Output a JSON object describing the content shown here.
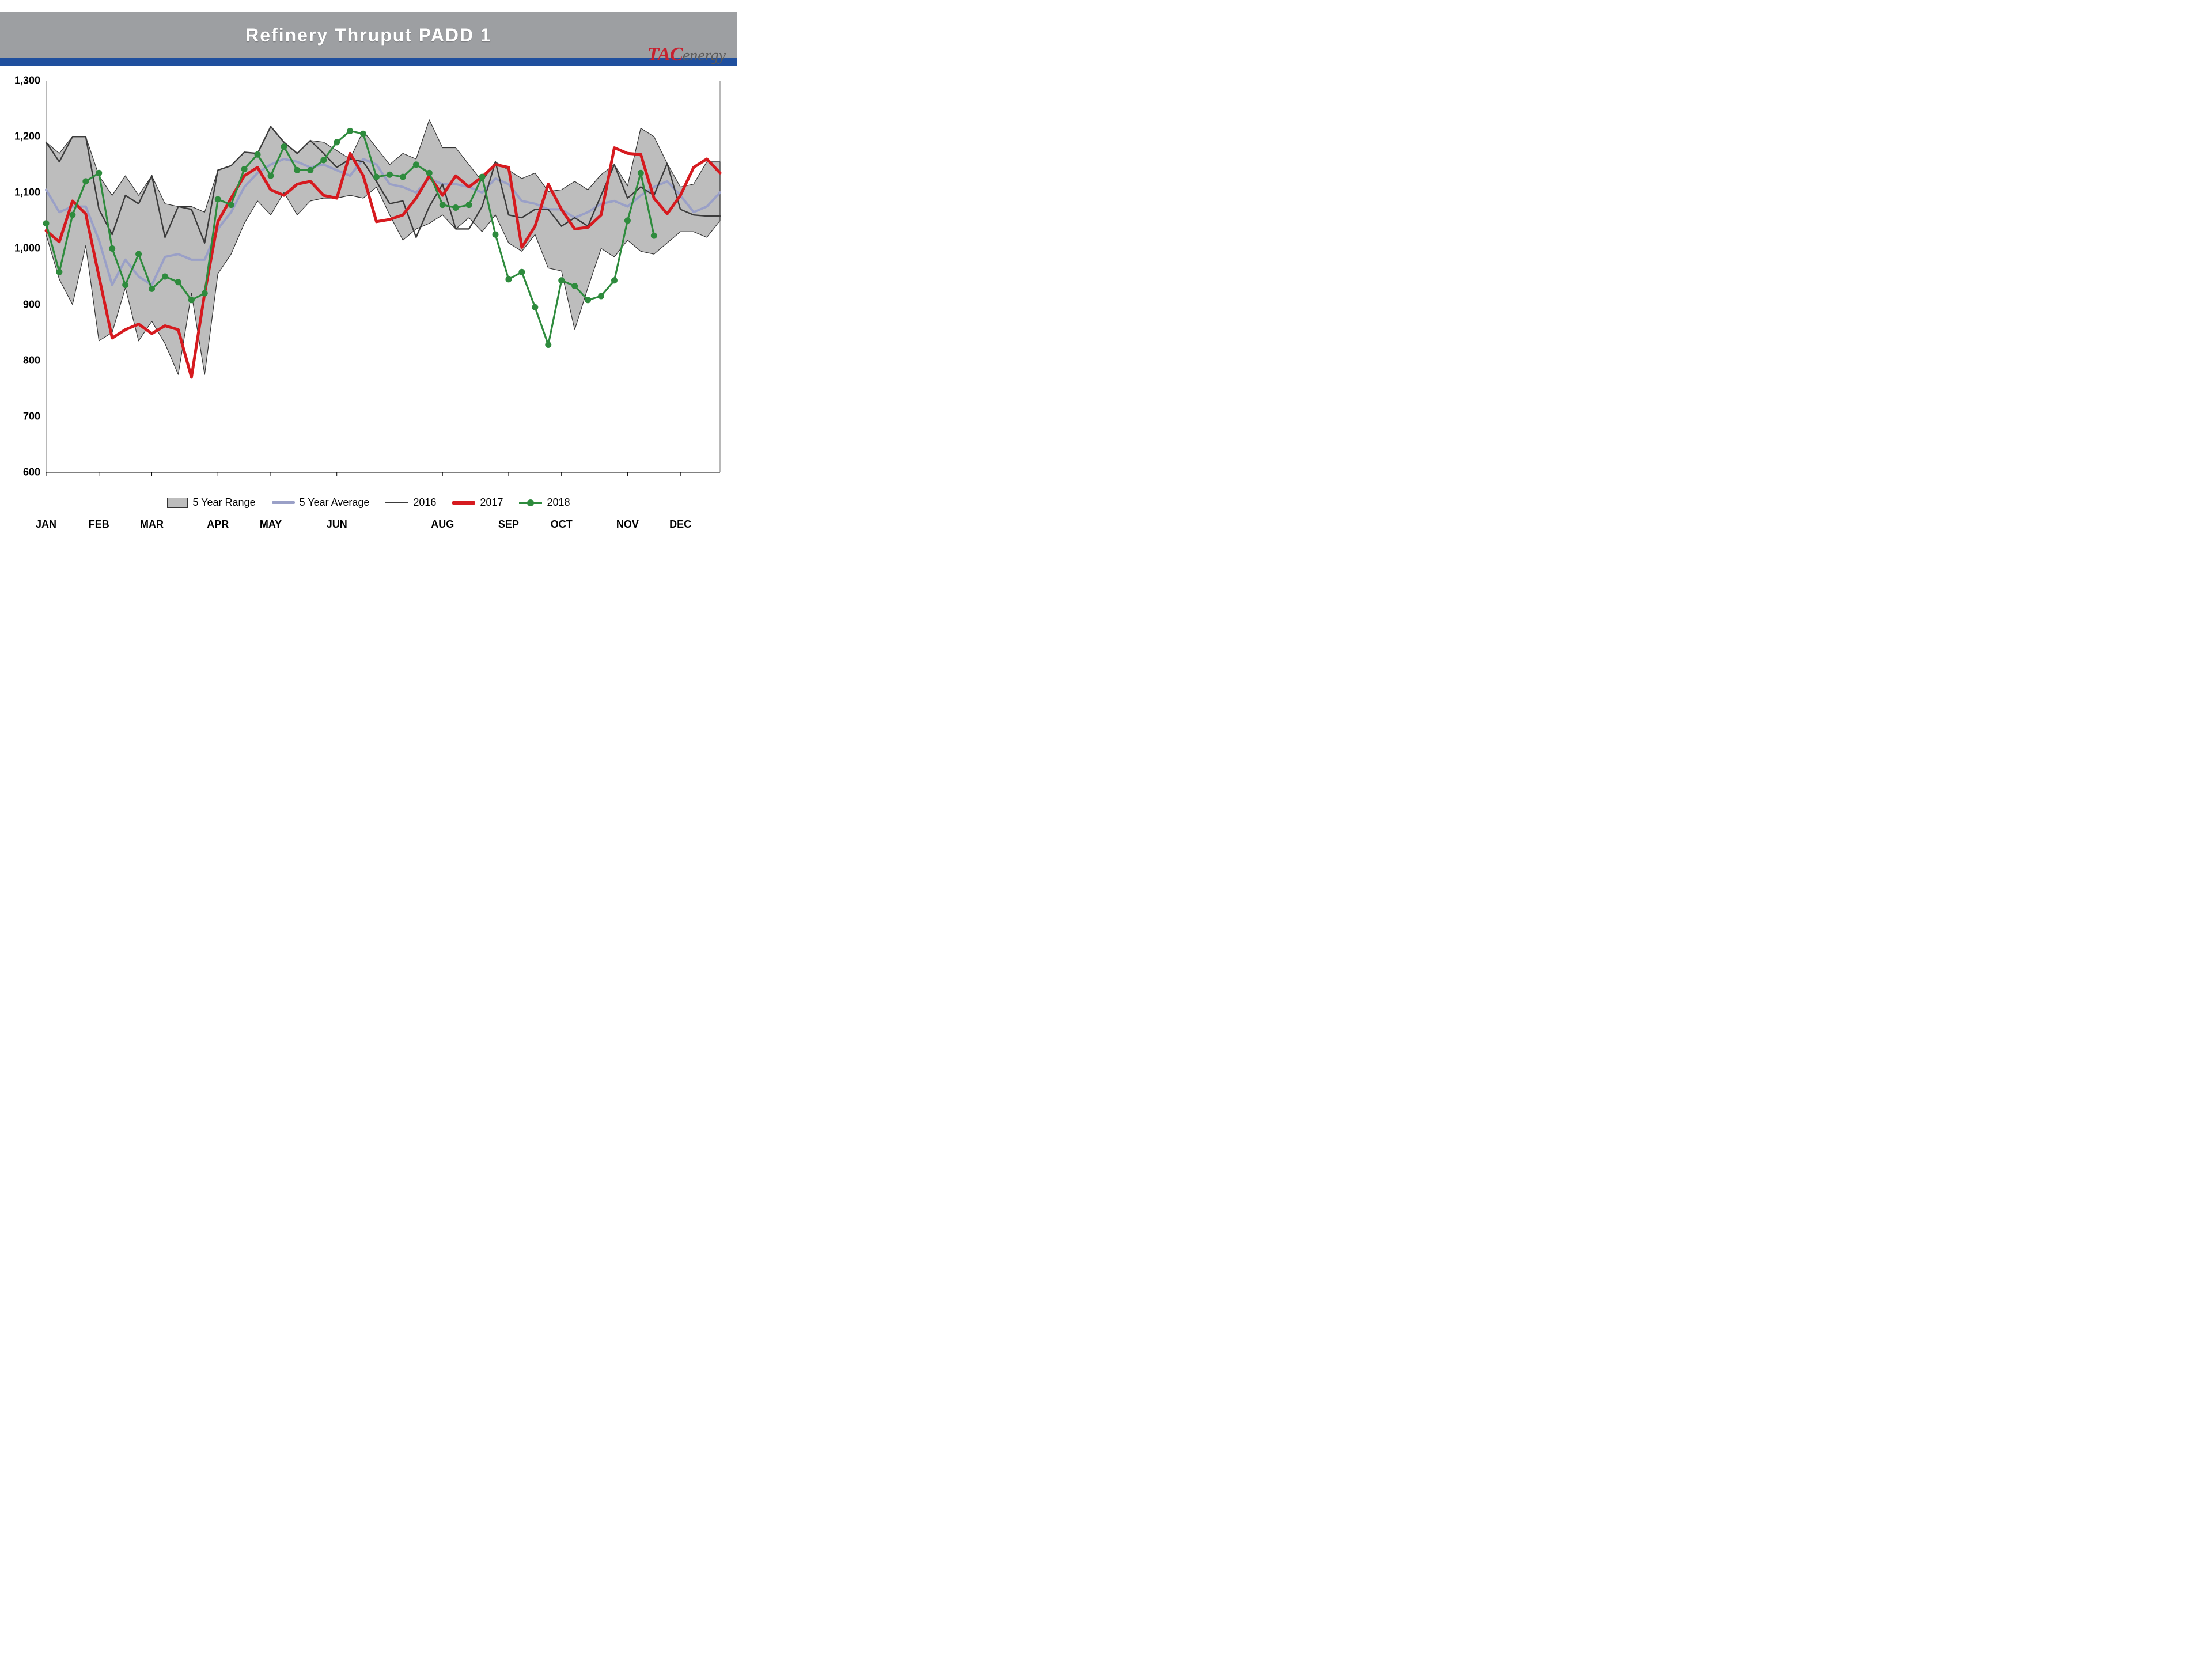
{
  "title": "Refinery Thruput PADD 1",
  "logo": {
    "left": "TAC",
    "right": "energy",
    "left_color": "#c8202f",
    "right_color": "#5a5a5a"
  },
  "stripe_color": "#1f4f9e",
  "titlebar_bg": "#9d9fa2",
  "chart": {
    "type": "line-with-band",
    "background_color": "#ffffff",
    "plot_border_color": "#888888",
    "ylim": [
      600,
      1300
    ],
    "ytick_step": 100,
    "y_ticks": [
      600,
      700,
      800,
      900,
      1000,
      1100,
      1200,
      1300
    ],
    "x_labels": [
      "JAN",
      "FEB",
      "MAR",
      "APR",
      "MAY",
      "JUN",
      "AUG",
      "SEP",
      "OCT",
      "NOV",
      "DEC"
    ],
    "x_label_weeks": [
      0,
      4,
      8,
      13,
      17,
      22,
      30,
      35,
      39,
      44,
      48
    ],
    "n_weeks": 52,
    "tick_fontsize": 18,
    "tick_fontweight": "bold",
    "band": {
      "name": "5 Year Range",
      "fill": "#bdbdbd",
      "stroke": "#333333",
      "stroke_width": 1.2,
      "upper": [
        1190,
        1170,
        1200,
        1200,
        1130,
        1095,
        1130,
        1095,
        1130,
        1080,
        1075,
        1075,
        1065,
        1140,
        1148,
        1172,
        1170,
        1218,
        1190,
        1170,
        1193,
        1190,
        1175,
        1160,
        1210,
        1180,
        1150,
        1170,
        1160,
        1230,
        1180,
        1180,
        1150,
        1120,
        1155,
        1140,
        1125,
        1135,
        1102,
        1105,
        1120,
        1105,
        1132,
        1150,
        1112,
        1215,
        1200,
        1152,
        1110,
        1115,
        1155,
        1155
      ],
      "lower": [
        1025,
        945,
        900,
        1005,
        835,
        850,
        930,
        835,
        870,
        830,
        775,
        920,
        775,
        955,
        990,
        1045,
        1085,
        1060,
        1100,
        1060,
        1085,
        1090,
        1090,
        1095,
        1090,
        1110,
        1060,
        1015,
        1035,
        1045,
        1060,
        1035,
        1055,
        1030,
        1060,
        1010,
        995,
        1025,
        965,
        960,
        855,
        930,
        1000,
        985,
        1015,
        995,
        990,
        1010,
        1030,
        1030,
        1020,
        1050
      ]
    },
    "series": [
      {
        "name": "5 Year Average",
        "color": "#9aa0c7",
        "width": 4,
        "markers": false,
        "values": [
          1105,
          1065,
          1075,
          1075,
          1015,
          935,
          980,
          950,
          935,
          985,
          990,
          980,
          980,
          1035,
          1065,
          1110,
          1135,
          1150,
          1160,
          1155,
          1145,
          1150,
          1140,
          1130,
          1160,
          1150,
          1115,
          1110,
          1100,
          1125,
          1115,
          1115,
          1110,
          1100,
          1125,
          1115,
          1085,
          1080,
          1070,
          1070,
          1055,
          1065,
          1080,
          1085,
          1075,
          1095,
          1110,
          1120,
          1095,
          1065,
          1075,
          1100
        ]
      },
      {
        "name": "2016",
        "color": "#3b3b3b",
        "width": 2.4,
        "markers": false,
        "values": [
          1190,
          1155,
          1200,
          1200,
          1070,
          1025,
          1095,
          1080,
          1130,
          1020,
          1075,
          1070,
          1010,
          1140,
          1148,
          1172,
          1170,
          1218,
          1190,
          1170,
          1193,
          1170,
          1145,
          1160,
          1155,
          1120,
          1080,
          1085,
          1020,
          1075,
          1115,
          1035,
          1035,
          1075,
          1155,
          1060,
          1055,
          1070,
          1070,
          1040,
          1055,
          1040,
          1095,
          1150,
          1090,
          1110,
          1095,
          1152,
          1070,
          1060,
          1058,
          1058
        ]
      },
      {
        "name": "2017",
        "color": "#d61a1f",
        "width": 5,
        "markers": false,
        "values": [
          1032,
          1012,
          1085,
          1062,
          950,
          840,
          855,
          865,
          848,
          862,
          855,
          770,
          920,
          1048,
          1090,
          1130,
          1145,
          1105,
          1095,
          1115,
          1120,
          1095,
          1090,
          1170,
          1130,
          1048,
          1052,
          1060,
          1090,
          1130,
          1095,
          1130,
          1110,
          1128,
          1150,
          1145,
          1002,
          1040,
          1115,
          1070,
          1035,
          1038,
          1060,
          1180,
          1170,
          1168,
          1090,
          1062,
          1095,
          1145,
          1160,
          1135
        ]
      },
      {
        "name": "2018",
        "color": "#2e8b3d",
        "width": 3.2,
        "markers": true,
        "marker_radius": 5,
        "values": [
          1045,
          958,
          1060,
          1120,
          1135,
          1000,
          935,
          990,
          928,
          950,
          940,
          908,
          920,
          1088,
          1078,
          1142,
          1168,
          1130,
          1182,
          1140,
          1140,
          1158,
          1190,
          1210,
          1205,
          1128,
          1132,
          1128,
          1150,
          1135,
          1078,
          1073,
          1078,
          1128,
          1025,
          945,
          958,
          895,
          828,
          943,
          933,
          908,
          915,
          943,
          1050,
          1135,
          1023
        ]
      }
    ],
    "legend": {
      "items": [
        "5 Year Range",
        "5 Year Average",
        "2016",
        "2017",
        "2018"
      ],
      "fontsize": 18
    }
  }
}
